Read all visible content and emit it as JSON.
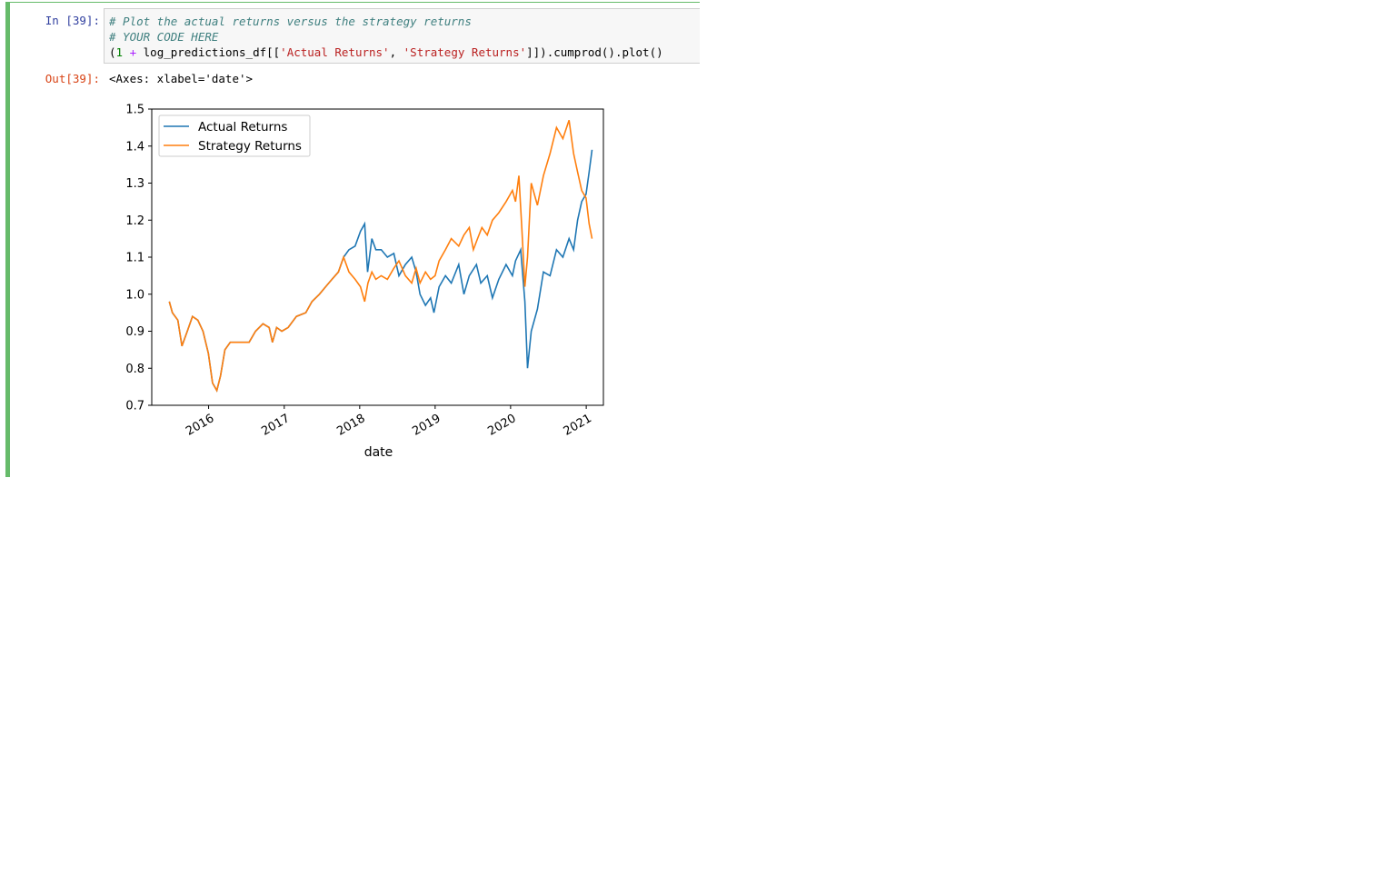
{
  "cell": {
    "in_prompt": "In [39]:",
    "out_prompt": "Out[39]:",
    "code": {
      "line1": "# Plot the actual returns versus the strategy returns",
      "line2": "# YOUR CODE HERE",
      "line3_open": "(",
      "line3_one": "1",
      "line3_plus": "+",
      "line3_var": "log_predictions_df[[",
      "line3_str1": "'Actual Returns'",
      "line3_comma": ",",
      "line3_str2": "'Strategy Returns'",
      "line3_tail": "]]).cumprod().plot()"
    },
    "output_text": "<Axes: xlabel='date'>"
  },
  "chart_data": {
    "type": "line",
    "xlabel": "date",
    "ylabel": "",
    "xlim": [
      "2015-04-01",
      "2021-03-25"
    ],
    "ylim": [
      0.7,
      1.5
    ],
    "x_ticks": [
      "2016",
      "2017",
      "2018",
      "2019",
      "2020",
      "2021"
    ],
    "y_ticks": [
      "0.7",
      "0.8",
      "0.9",
      "1.0",
      "1.1",
      "1.2",
      "1.3",
      "1.4",
      "1.5"
    ],
    "legend_position": "upper-left",
    "grid": false,
    "series": [
      {
        "name": "Actual Returns",
        "color": "#1f77b4",
        "points": [
          [
            "2015-06-25",
            0.98
          ],
          [
            "2015-07-10",
            0.95
          ],
          [
            "2015-08-05",
            0.93
          ],
          [
            "2015-08-25",
            0.86
          ],
          [
            "2015-09-20",
            0.9
          ],
          [
            "2015-10-15",
            0.94
          ],
          [
            "2015-11-10",
            0.93
          ],
          [
            "2015-12-05",
            0.9
          ],
          [
            "2015-12-31",
            0.84
          ],
          [
            "2016-01-20",
            0.76
          ],
          [
            "2016-02-10",
            0.74
          ],
          [
            "2016-02-28",
            0.78
          ],
          [
            "2016-03-20",
            0.85
          ],
          [
            "2016-04-15",
            0.87
          ],
          [
            "2016-06-01",
            0.87
          ],
          [
            "2016-07-15",
            0.87
          ],
          [
            "2016-08-15",
            0.9
          ],
          [
            "2016-09-20",
            0.92
          ],
          [
            "2016-10-20",
            0.91
          ],
          [
            "2016-11-05",
            0.87
          ],
          [
            "2016-11-25",
            0.91
          ],
          [
            "2016-12-20",
            0.9
          ],
          [
            "2017-01-20",
            0.91
          ],
          [
            "2017-03-01",
            0.94
          ],
          [
            "2017-04-15",
            0.95
          ],
          [
            "2017-05-15",
            0.98
          ],
          [
            "2017-06-20",
            1.0
          ],
          [
            "2017-07-20",
            1.02
          ],
          [
            "2017-08-20",
            1.04
          ],
          [
            "2017-09-20",
            1.06
          ],
          [
            "2017-10-15",
            1.1
          ],
          [
            "2017-11-10",
            1.12
          ],
          [
            "2017-12-10",
            1.13
          ],
          [
            "2018-01-05",
            1.17
          ],
          [
            "2018-01-25",
            1.19
          ],
          [
            "2018-02-08",
            1.06
          ],
          [
            "2018-03-01",
            1.15
          ],
          [
            "2018-03-20",
            1.12
          ],
          [
            "2018-04-15",
            1.12
          ],
          [
            "2018-05-15",
            1.1
          ],
          [
            "2018-06-15",
            1.11
          ],
          [
            "2018-07-10",
            1.05
          ],
          [
            "2018-08-10",
            1.08
          ],
          [
            "2018-09-10",
            1.1
          ],
          [
            "2018-10-01",
            1.06
          ],
          [
            "2018-10-20",
            1.0
          ],
          [
            "2018-11-15",
            0.97
          ],
          [
            "2018-12-10",
            0.99
          ],
          [
            "2018-12-26",
            0.95
          ],
          [
            "2019-01-20",
            1.02
          ],
          [
            "2019-02-20",
            1.05
          ],
          [
            "2019-03-20",
            1.03
          ],
          [
            "2019-04-25",
            1.08
          ],
          [
            "2019-05-20",
            1.0
          ],
          [
            "2019-06-15",
            1.05
          ],
          [
            "2019-07-20",
            1.08
          ],
          [
            "2019-08-10",
            1.03
          ],
          [
            "2019-09-10",
            1.05
          ],
          [
            "2019-10-05",
            0.99
          ],
          [
            "2019-11-05",
            1.04
          ],
          [
            "2019-12-10",
            1.08
          ],
          [
            "2020-01-10",
            1.05
          ],
          [
            "2020-01-25",
            1.09
          ],
          [
            "2020-02-19",
            1.12
          ],
          [
            "2020-03-10",
            0.98
          ],
          [
            "2020-03-23",
            0.8
          ],
          [
            "2020-04-10",
            0.9
          ],
          [
            "2020-05-10",
            0.96
          ],
          [
            "2020-06-08",
            1.06
          ],
          [
            "2020-07-10",
            1.05
          ],
          [
            "2020-08-10",
            1.12
          ],
          [
            "2020-09-10",
            1.1
          ],
          [
            "2020-10-10",
            1.15
          ],
          [
            "2020-11-01",
            1.12
          ],
          [
            "2020-11-20",
            1.2
          ],
          [
            "2020-12-10",
            1.25
          ],
          [
            "2020-12-31",
            1.27
          ],
          [
            "2021-01-15",
            1.33
          ],
          [
            "2021-01-29",
            1.39
          ]
        ]
      },
      {
        "name": "Strategy Returns",
        "color": "#ff7f0e",
        "points": [
          [
            "2015-06-25",
            0.98
          ],
          [
            "2015-07-10",
            0.95
          ],
          [
            "2015-08-05",
            0.93
          ],
          [
            "2015-08-25",
            0.86
          ],
          [
            "2015-09-20",
            0.9
          ],
          [
            "2015-10-15",
            0.94
          ],
          [
            "2015-11-10",
            0.93
          ],
          [
            "2015-12-05",
            0.9
          ],
          [
            "2015-12-31",
            0.84
          ],
          [
            "2016-01-20",
            0.76
          ],
          [
            "2016-02-10",
            0.74
          ],
          [
            "2016-02-28",
            0.78
          ],
          [
            "2016-03-20",
            0.85
          ],
          [
            "2016-04-15",
            0.87
          ],
          [
            "2016-06-01",
            0.87
          ],
          [
            "2016-07-15",
            0.87
          ],
          [
            "2016-08-15",
            0.9
          ],
          [
            "2016-09-20",
            0.92
          ],
          [
            "2016-10-20",
            0.91
          ],
          [
            "2016-11-05",
            0.87
          ],
          [
            "2016-11-25",
            0.91
          ],
          [
            "2016-12-20",
            0.9
          ],
          [
            "2017-01-20",
            0.91
          ],
          [
            "2017-03-01",
            0.94
          ],
          [
            "2017-04-15",
            0.95
          ],
          [
            "2017-05-15",
            0.98
          ],
          [
            "2017-06-20",
            1.0
          ],
          [
            "2017-07-20",
            1.02
          ],
          [
            "2017-08-20",
            1.04
          ],
          [
            "2017-09-20",
            1.06
          ],
          [
            "2017-10-15",
            1.1
          ],
          [
            "2017-11-10",
            1.06
          ],
          [
            "2017-12-10",
            1.04
          ],
          [
            "2018-01-05",
            1.02
          ],
          [
            "2018-01-25",
            0.98
          ],
          [
            "2018-02-10",
            1.03
          ],
          [
            "2018-03-01",
            1.06
          ],
          [
            "2018-03-20",
            1.04
          ],
          [
            "2018-04-15",
            1.05
          ],
          [
            "2018-05-15",
            1.04
          ],
          [
            "2018-06-15",
            1.07
          ],
          [
            "2018-07-10",
            1.09
          ],
          [
            "2018-08-10",
            1.05
          ],
          [
            "2018-09-10",
            1.03
          ],
          [
            "2018-10-01",
            1.07
          ],
          [
            "2018-10-20",
            1.03
          ],
          [
            "2018-11-15",
            1.06
          ],
          [
            "2018-12-10",
            1.04
          ],
          [
            "2019-01-01",
            1.05
          ],
          [
            "2019-01-20",
            1.09
          ],
          [
            "2019-02-20",
            1.12
          ],
          [
            "2019-03-20",
            1.15
          ],
          [
            "2019-04-25",
            1.13
          ],
          [
            "2019-05-20",
            1.16
          ],
          [
            "2019-06-15",
            1.18
          ],
          [
            "2019-07-05",
            1.12
          ],
          [
            "2019-07-25",
            1.15
          ],
          [
            "2019-08-15",
            1.18
          ],
          [
            "2019-09-10",
            1.16
          ],
          [
            "2019-10-05",
            1.2
          ],
          [
            "2019-11-05",
            1.22
          ],
          [
            "2019-12-10",
            1.25
          ],
          [
            "2020-01-10",
            1.28
          ],
          [
            "2020-01-25",
            1.25
          ],
          [
            "2020-02-10",
            1.32
          ],
          [
            "2020-02-24",
            1.18
          ],
          [
            "2020-03-10",
            1.02
          ],
          [
            "2020-03-23",
            1.1
          ],
          [
            "2020-04-10",
            1.3
          ],
          [
            "2020-05-10",
            1.24
          ],
          [
            "2020-06-08",
            1.32
          ],
          [
            "2020-07-10",
            1.38
          ],
          [
            "2020-08-10",
            1.45
          ],
          [
            "2020-09-10",
            1.42
          ],
          [
            "2020-10-10",
            1.47
          ],
          [
            "2020-11-01",
            1.38
          ],
          [
            "2020-11-20",
            1.33
          ],
          [
            "2020-12-10",
            1.28
          ],
          [
            "2020-12-31",
            1.26
          ],
          [
            "2021-01-15",
            1.19
          ],
          [
            "2021-01-29",
            1.15
          ]
        ]
      }
    ]
  }
}
